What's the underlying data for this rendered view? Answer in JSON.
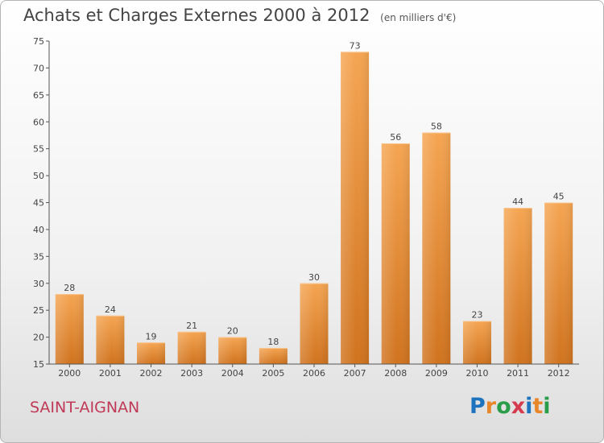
{
  "title": "Achats et Charges Externes 2000 à 2012",
  "unit": "(en milliers d'€)",
  "town": "SAINT-AIGNAN",
  "logo": {
    "text": "Proxiti",
    "letters": [
      {
        "char": "P",
        "color": "#1e73be"
      },
      {
        "char": "r",
        "color": "#e8862a"
      },
      {
        "char": "o",
        "color": "#2a9d4a"
      },
      {
        "char": "x",
        "color": "#d63a4f"
      },
      {
        "char": "i",
        "color": "#1e73be"
      },
      {
        "char": "t",
        "color": "#e8862a"
      },
      {
        "char": "i",
        "color": "#2a9d4a"
      }
    ]
  },
  "colors": {
    "bar_light": "#f5a552",
    "bar_dark": "#d0731e",
    "axis": "#555555",
    "grid": "#e2e2e2"
  },
  "chart_data": {
    "type": "bar",
    "title": "Achats et Charges Externes 2000 à 2012",
    "subtitle": "(en milliers d'€)",
    "xlabel": "",
    "ylabel": "",
    "categories": [
      "2000",
      "2001",
      "2002",
      "2003",
      "2004",
      "2005",
      "2006",
      "2007",
      "2008",
      "2009",
      "2010",
      "2011",
      "2012"
    ],
    "values": [
      28,
      24,
      19,
      21,
      20,
      18,
      30,
      73,
      56,
      58,
      23,
      44,
      45
    ],
    "ylim": [
      15,
      75
    ],
    "yticks": [
      15,
      20,
      25,
      30,
      35,
      40,
      45,
      50,
      55,
      60,
      65,
      70,
      75
    ],
    "data_labels": true,
    "grid": false,
    "legend": "none"
  }
}
